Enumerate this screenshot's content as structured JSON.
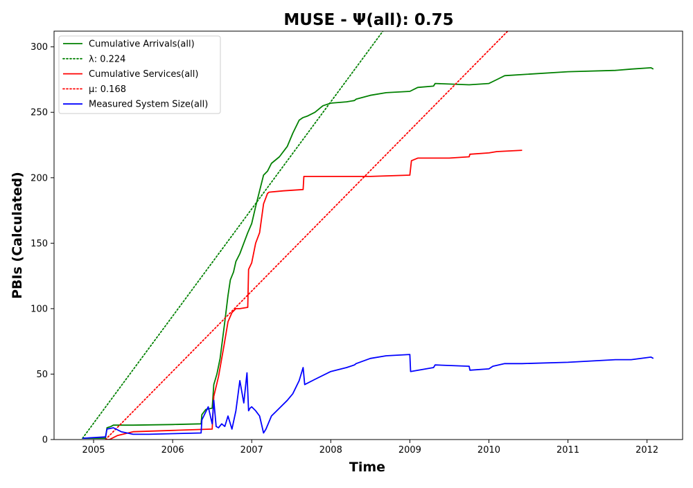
{
  "chart_data": {
    "type": "line",
    "title": "MUSE -  Ψ(all): 0.75",
    "xlabel": "Time",
    "ylabel": "PBIs (Calculated)",
    "xlim": [
      2004.5,
      2012.45
    ],
    "ylim": [
      0,
      312
    ],
    "xticks": [
      "2005",
      "2006",
      "2007",
      "2008",
      "2009",
      "2010",
      "2011",
      "2012"
    ],
    "yticks": [
      "0",
      "50",
      "100",
      "150",
      "200",
      "250",
      "300"
    ],
    "grid": false,
    "legend_position": "top-left",
    "series": [
      {
        "name": "Cumulative Arrivals(all)",
        "style": "solid",
        "color": "#008000",
        "x": [
          2004.86,
          2005.15,
          2005.17,
          2005.22,
          2005.25,
          2005.5,
          2006.0,
          2006.36,
          2006.37,
          2006.42,
          2006.5,
          2006.52,
          2006.56,
          2006.6,
          2006.66,
          2006.7,
          2006.73,
          2006.77,
          2006.8,
          2006.85,
          2006.9,
          2006.95,
          2007.0,
          2007.05,
          2007.1,
          2007.15,
          2007.2,
          2007.25,
          2007.35,
          2007.45,
          2007.52,
          2007.6,
          2007.65,
          2007.7,
          2007.8,
          2007.9,
          2008.0,
          2008.2,
          2008.3,
          2008.32,
          2008.5,
          2008.7,
          2009.0,
          2009.1,
          2009.3,
          2009.32,
          2009.75,
          2010.0,
          2010.1,
          2010.2,
          2011.0,
          2011.6,
          2011.8,
          2012.05,
          2012.08
        ],
        "y": [
          1,
          1,
          9,
          10,
          11,
          11,
          11.5,
          12,
          19,
          23,
          24,
          42,
          50,
          62,
          90,
          110,
          122,
          128,
          136,
          142,
          150,
          158,
          165,
          178,
          190,
          202,
          205,
          211,
          216,
          224,
          234,
          244,
          246,
          247,
          250,
          255,
          257,
          258,
          259,
          260,
          263,
          265,
          266,
          269,
          270,
          272,
          271,
          272,
          275,
          278,
          281,
          282,
          283,
          284,
          283
        ]
      },
      {
        "name": "λ: 0.224",
        "style": "dotted",
        "color": "#008000",
        "x": [
          2004.86,
          2012.08
        ],
        "y": [
          1,
          592
        ]
      },
      {
        "name": "Cumulative Services(all)",
        "style": "solid",
        "color": "#ff0000",
        "x": [
          2005.15,
          2005.2,
          2005.3,
          2005.5,
          2006.0,
          2006.5,
          2006.52,
          2006.58,
          2006.65,
          2006.7,
          2006.75,
          2006.8,
          2006.85,
          2006.95,
          2006.96,
          2007.0,
          2007.05,
          2007.1,
          2007.15,
          2007.2,
          2007.22,
          2007.4,
          2007.65,
          2007.66,
          2008.5,
          2009.0,
          2009.02,
          2009.1,
          2009.5,
          2009.75,
          2009.76,
          2010.0,
          2010.1,
          2010.42
        ],
        "y": [
          0,
          0,
          3,
          6,
          7,
          8,
          33,
          48,
          72,
          90,
          97,
          100,
          100,
          101,
          130,
          135,
          150,
          158,
          180,
          188,
          189,
          190,
          191,
          201,
          201,
          202,
          213,
          215,
          215,
          216,
          218,
          219,
          220,
          221
        ]
      },
      {
        "name": "μ: 0.168",
        "style": "dotted",
        "color": "#ff0000",
        "x": [
          2005.15,
          2012.08
        ],
        "y": [
          0,
          425
        ]
      },
      {
        "name": "Measured System Size(all)",
        "style": "solid",
        "color": "#0000ff",
        "x": [
          2004.86,
          2005.15,
          2005.17,
          2005.25,
          2005.35,
          2005.5,
          2005.7,
          2006.0,
          2006.36,
          2006.37,
          2006.45,
          2006.5,
          2006.52,
          2006.55,
          2006.58,
          2006.62,
          2006.66,
          2006.7,
          2006.75,
          2006.8,
          2006.85,
          2006.9,
          2006.94,
          2006.96,
          2006.98,
          2007.0,
          2007.05,
          2007.1,
          2007.15,
          2007.18,
          2007.25,
          2007.35,
          2007.45,
          2007.52,
          2007.6,
          2007.65,
          2007.67,
          2007.8,
          2008.0,
          2008.2,
          2008.3,
          2008.32,
          2008.5,
          2008.7,
          2009.0,
          2009.01,
          2009.3,
          2009.32,
          2009.75,
          2009.76,
          2010.0,
          2010.05,
          2010.2,
          2010.42,
          2011.0,
          2011.6,
          2011.8,
          2012.05,
          2012.08
        ],
        "y": [
          1,
          2,
          8,
          9,
          6,
          4,
          4,
          4.5,
          5,
          15,
          25,
          12,
          30,
          10,
          9,
          12,
          10,
          18,
          8,
          22,
          45,
          28,
          51,
          22,
          24,
          25,
          22,
          18,
          5,
          8,
          18,
          24,
          30,
          35,
          45,
          55,
          42,
          46,
          52,
          55,
          57,
          58,
          62,
          64,
          65,
          52,
          55,
          57,
          56,
          53,
          54,
          56,
          58,
          58,
          59,
          61,
          61,
          63,
          62
        ]
      }
    ]
  }
}
